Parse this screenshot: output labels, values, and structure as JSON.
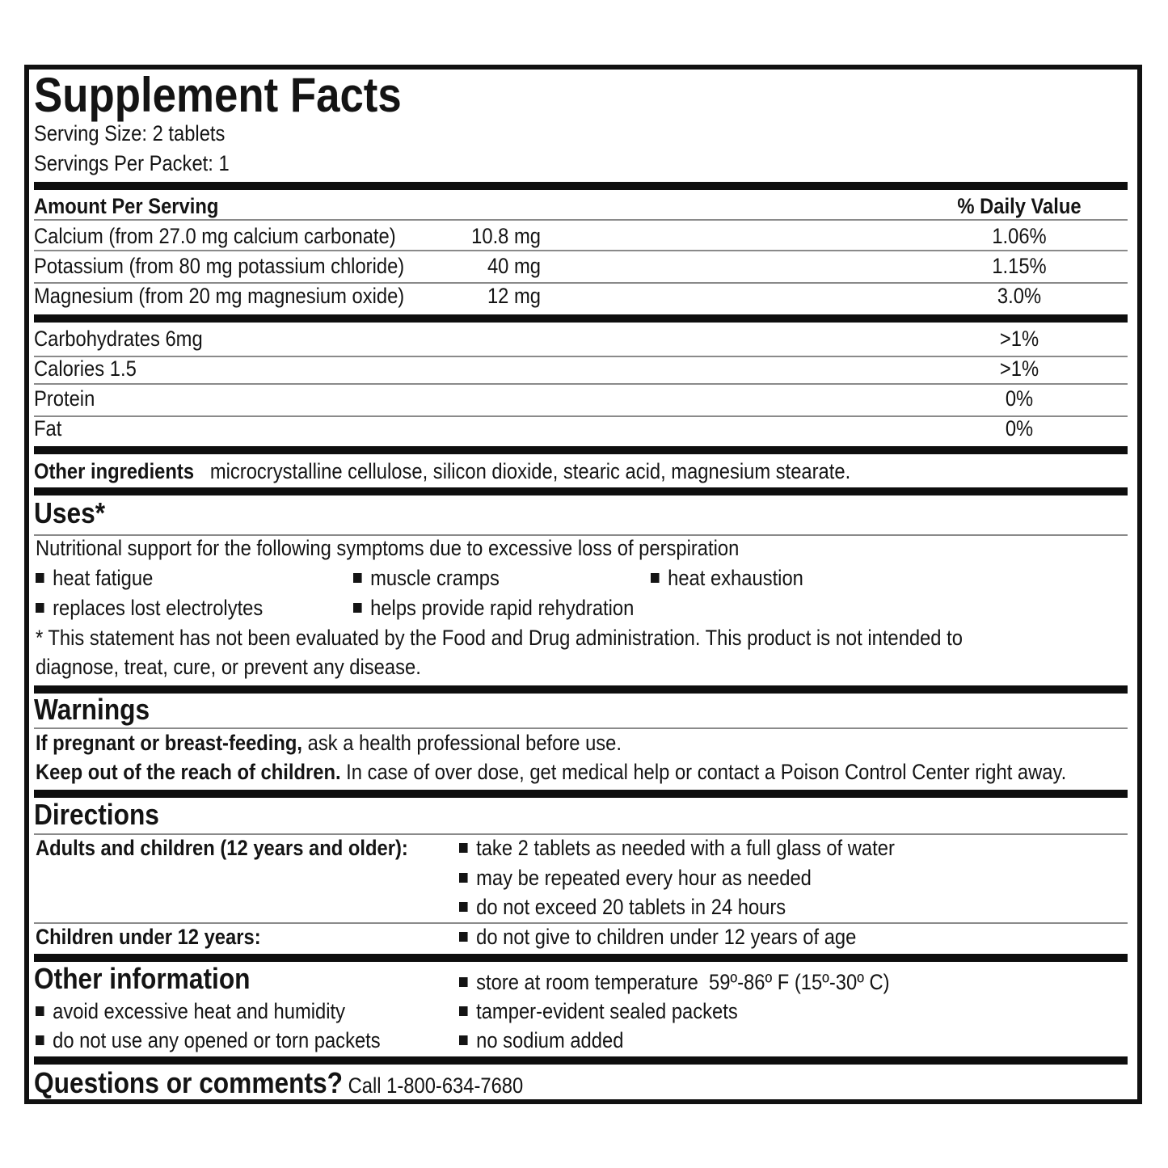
{
  "title": "Supplement Facts",
  "serving_size": "Serving Size: 2 tablets",
  "servings_per_packet": "Servings Per Packet: 1",
  "table": {
    "amount_header": "Amount Per Serving",
    "dv_header": "% Daily Value",
    "minerals": [
      {
        "name": "Calcium (from 27.0 mg calcium carbonate)",
        "amount": "10.8 mg",
        "dv": "1.06%"
      },
      {
        "name": "Potassium (from 80 mg potassium chloride)",
        "amount": "40 mg",
        "dv": "1.15%"
      },
      {
        "name": "Magnesium (from 20 mg magnesium oxide)",
        "amount": "12 mg",
        "dv": "3.0%"
      }
    ],
    "nutrients": [
      {
        "name": "Carbohydrates 6mg",
        "dv": ">1%"
      },
      {
        "name": "Calories 1.5",
        "dv": ">1%"
      },
      {
        "name": "Protein",
        "dv": "0%"
      },
      {
        "name": "Fat",
        "dv": "0%"
      }
    ]
  },
  "other_ingredients": {
    "label": "Other ingredients",
    "text": "microcrystalline cellulose, silicon dioxide, stearic acid, magnesium stearate."
  },
  "uses": {
    "heading": "Uses*",
    "intro": "Nutritional support for the following symptoms due to excessive loss of perspiration",
    "items": [
      "heat fatigue",
      "muscle cramps",
      "heat exhaustion",
      "replaces lost electrolytes",
      "helps provide rapid rehydration"
    ],
    "disclaimer_1": "* This statement has not been evaluated by the Food and Drug administration. This product is not intended to",
    "disclaimer_2": "diagnose, treat, cure, or prevent any disease."
  },
  "warnings": {
    "heading": "Warnings",
    "line1_bold": "If pregnant or breast-feeding,",
    "line1_text": "ask a health professional before use.",
    "line2_bold": "Keep out of the reach of children.",
    "line2_text": "In case of over dose, get medical help or contact a Poison Control Center right away."
  },
  "directions": {
    "heading": "Directions",
    "adults_label": "Adults and children (12 years and older):",
    "adults_items": [
      "take 2 tablets as needed with a full glass of water",
      "may be repeated every hour as needed",
      "do not exceed 20 tablets in 24 hours"
    ],
    "children_label": "Children under 12 years:",
    "children_items": [
      "do not give to children under 12 years of age"
    ]
  },
  "other_information": {
    "heading": "Other information",
    "left_items": [
      "avoid excessive heat and humidity",
      "do not use any opened or torn packets"
    ],
    "right_items": [
      "store at room temperature  59º-86º F (15º-30º C)",
      "tamper-evident sealed packets",
      "no sodium added"
    ]
  },
  "questions": {
    "label": "Questions or comments?",
    "text": "Call 1-800-634-7680"
  }
}
